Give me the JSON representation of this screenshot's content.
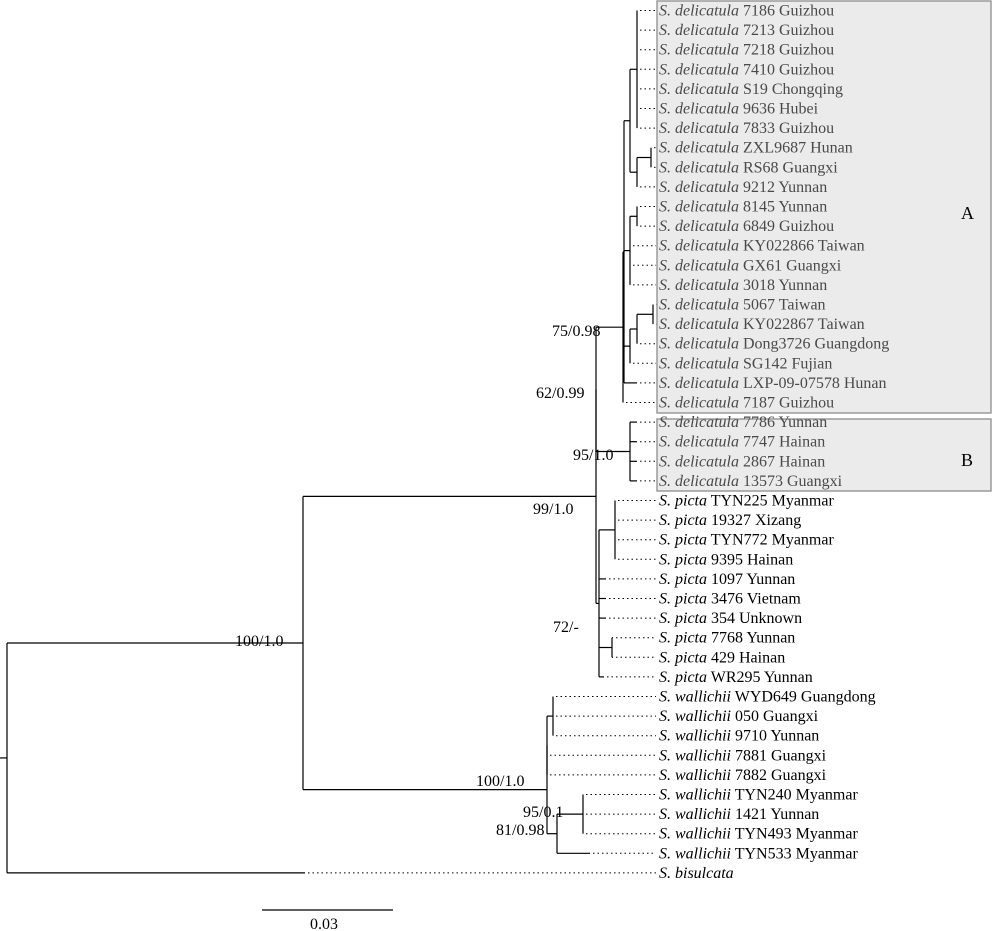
{
  "clades": [
    {
      "label": "A"
    },
    {
      "label": "B"
    }
  ],
  "support_values": [
    "75/0.98",
    "62/0.99",
    "95/1.0",
    "99/1.0",
    "72/-",
    "100/1.0",
    "100/1.0",
    "95/0.1",
    "81/0.98"
  ],
  "scale_bar": {
    "label": "0.03"
  },
  "taxa": [
    {
      "genus": "S.",
      "species": "delicatula",
      "specimen": "7186",
      "locality": "Guizhou",
      "clade": "A"
    },
    {
      "genus": "S.",
      "species": "delicatula",
      "specimen": "7213",
      "locality": "Guizhou",
      "clade": "A"
    },
    {
      "genus": "S.",
      "species": "delicatula",
      "specimen": "7218",
      "locality": "Guizhou",
      "clade": "A"
    },
    {
      "genus": "S.",
      "species": "delicatula",
      "specimen": "7410",
      "locality": "Guizhou",
      "clade": "A"
    },
    {
      "genus": "S.",
      "species": "delicatula",
      "specimen": "S19",
      "locality": "Chongqing",
      "clade": "A"
    },
    {
      "genus": "S.",
      "species": "delicatula",
      "specimen": "9636",
      "locality": "Hubei",
      "clade": "A"
    },
    {
      "genus": "S.",
      "species": "delicatula",
      "specimen": "7833",
      "locality": "Guizhou",
      "clade": "A"
    },
    {
      "genus": "S.",
      "species": "delicatula",
      "specimen": "ZXL9687",
      "locality": "Hunan",
      "clade": "A"
    },
    {
      "genus": "S.",
      "species": "delicatula",
      "specimen": "RS68",
      "locality": "Guangxi",
      "clade": "A"
    },
    {
      "genus": "S.",
      "species": "delicatula",
      "specimen": "9212",
      "locality": "Yunnan",
      "clade": "A"
    },
    {
      "genus": "S.",
      "species": "delicatula",
      "specimen": "8145",
      "locality": "Yunnan",
      "clade": "A"
    },
    {
      "genus": "S.",
      "species": "delicatula",
      "specimen": "6849",
      "locality": "Guizhou",
      "clade": "A"
    },
    {
      "genus": "S.",
      "species": "delicatula",
      "specimen": "KY022866",
      "locality": "Taiwan",
      "clade": "A"
    },
    {
      "genus": "S.",
      "species": "delicatula",
      "specimen": "GX61",
      "locality": "Guangxi",
      "clade": "A"
    },
    {
      "genus": "S.",
      "species": "delicatula",
      "specimen": "3018",
      "locality": "Yunnan",
      "clade": "A"
    },
    {
      "genus": "S.",
      "species": "delicatula",
      "specimen": "5067",
      "locality": "Taiwan",
      "clade": "A"
    },
    {
      "genus": "S.",
      "species": "delicatula",
      "specimen": "KY022867",
      "locality": "Taiwan",
      "clade": "A"
    },
    {
      "genus": "S.",
      "species": "delicatula",
      "specimen": "Dong3726",
      "locality": "Guangdong",
      "clade": "A"
    },
    {
      "genus": "S.",
      "species": "delicatula",
      "specimen": "SG142",
      "locality": "Fujian",
      "clade": "A"
    },
    {
      "genus": "S.",
      "species": "delicatula",
      "specimen": "LXP-09-07578",
      "locality": "Hunan",
      "clade": "A"
    },
    {
      "genus": "S.",
      "species": "delicatula",
      "specimen": "7187",
      "locality": "Guizhou",
      "clade": "A"
    },
    {
      "genus": "S.",
      "species": "delicatula",
      "specimen": "7786",
      "locality": "Yunnan",
      "clade": "B"
    },
    {
      "genus": "S.",
      "species": "delicatula",
      "specimen": "7747",
      "locality": "Hainan",
      "clade": "B"
    },
    {
      "genus": "S.",
      "species": "delicatula",
      "specimen": "2867",
      "locality": "Hainan",
      "clade": "B"
    },
    {
      "genus": "S.",
      "species": "delicatula",
      "specimen": "13573",
      "locality": "Guangxi",
      "clade": "B"
    },
    {
      "genus": "S.",
      "species": "picta",
      "specimen": "TYN225",
      "locality": "Myanmar",
      "clade": ""
    },
    {
      "genus": "S.",
      "species": "picta",
      "specimen": "19327",
      "locality": "Xizang",
      "clade": ""
    },
    {
      "genus": "S.",
      "species": "picta",
      "specimen": "TYN772",
      "locality": "Myanmar",
      "clade": ""
    },
    {
      "genus": "S.",
      "species": "picta",
      "specimen": "9395",
      "locality": "Hainan",
      "clade": ""
    },
    {
      "genus": "S.",
      "species": "picta",
      "specimen": "1097",
      "locality": "Yunnan",
      "clade": ""
    },
    {
      "genus": "S.",
      "species": "picta",
      "specimen": "3476",
      "locality": "Vietnam",
      "clade": ""
    },
    {
      "genus": "S.",
      "species": "picta",
      "specimen": "354",
      "locality": "Unknown",
      "clade": ""
    },
    {
      "genus": "S.",
      "species": "picta",
      "specimen": "7768",
      "locality": "Yunnan",
      "clade": ""
    },
    {
      "genus": "S.",
      "species": "picta",
      "specimen": "429",
      "locality": "Hainan",
      "clade": ""
    },
    {
      "genus": "S.",
      "species": "picta",
      "specimen": "WR295",
      "locality": "Yunnan",
      "clade": ""
    },
    {
      "genus": "S.",
      "species": "wallichii",
      "specimen": "WYD649",
      "locality": "Guangdong",
      "clade": ""
    },
    {
      "genus": "S.",
      "species": "wallichii",
      "specimen": "050",
      "locality": "Guangxi",
      "clade": ""
    },
    {
      "genus": "S.",
      "species": "wallichii",
      "specimen": "9710",
      "locality": "Yunnan",
      "clade": ""
    },
    {
      "genus": "S.",
      "species": "wallichii",
      "specimen": "7881",
      "locality": "Guangxi",
      "clade": ""
    },
    {
      "genus": "S.",
      "species": "wallichii",
      "specimen": "7882",
      "locality": "Guangxi",
      "clade": ""
    },
    {
      "genus": "S.",
      "species": "wallichii",
      "specimen": "TYN240",
      "locality": "Myanmar",
      "clade": ""
    },
    {
      "genus": "S.",
      "species": "wallichii",
      "specimen": "1421",
      "locality": "Yunnan",
      "clade": ""
    },
    {
      "genus": "S.",
      "species": "wallichii",
      "specimen": "TYN493",
      "locality": "Myanmar",
      "clade": ""
    },
    {
      "genus": "S.",
      "species": "wallichii",
      "specimen": "TYN533",
      "locality": "Myanmar",
      "clade": ""
    },
    {
      "genus": "S.",
      "species": "bisulcata",
      "specimen": "",
      "locality": "",
      "clade": ""
    }
  ]
}
